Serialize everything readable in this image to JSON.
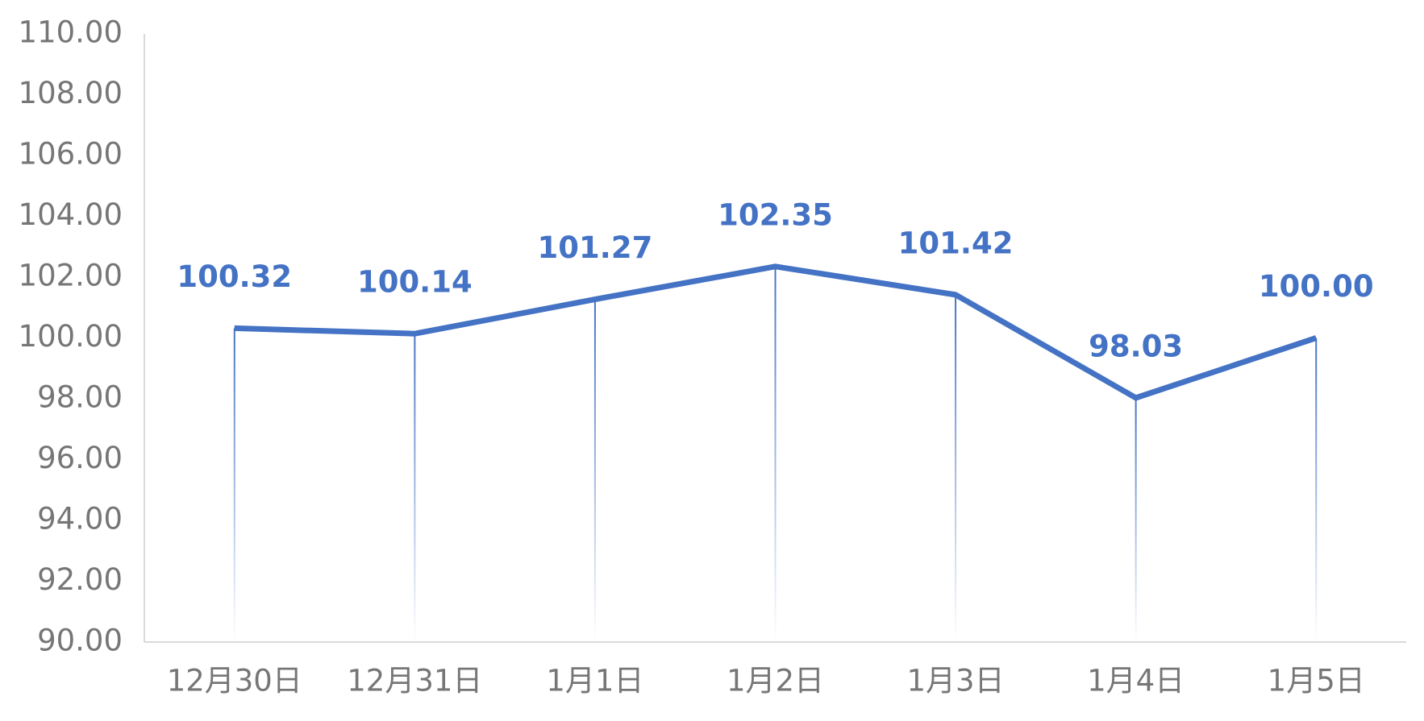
{
  "chart_data": {
    "type": "line",
    "categories": [
      "12月30日",
      "12月31日",
      "1月1日",
      "1月2日",
      "1月3日",
      "1月4日",
      "1月5日"
    ],
    "values": [
      100.32,
      100.14,
      101.27,
      102.35,
      101.42,
      98.03,
      100
    ],
    "value_labels": [
      "100.32",
      "100.14",
      "101.27",
      "102.35",
      "101.42",
      "98.03",
      "100.00"
    ],
    "color": "#4472c4",
    "ylim": [
      90,
      110
    ],
    "yticks": [
      {
        "value": 90,
        "label": "90.00"
      },
      {
        "value": 92,
        "label": "92.00"
      },
      {
        "value": 94,
        "label": "94.00"
      },
      {
        "value": 96,
        "label": "96.00"
      },
      {
        "value": 98,
        "label": "98.00"
      },
      {
        "value": 100,
        "label": "100.00"
      },
      {
        "value": 102,
        "label": "102.00"
      },
      {
        "value": 104,
        "label": "104.00"
      },
      {
        "value": 106,
        "label": "106.00"
      },
      {
        "value": 108,
        "label": "108.00"
      },
      {
        "value": 110,
        "label": "110.00"
      }
    ],
    "grid": false,
    "drop_lines": true
  }
}
